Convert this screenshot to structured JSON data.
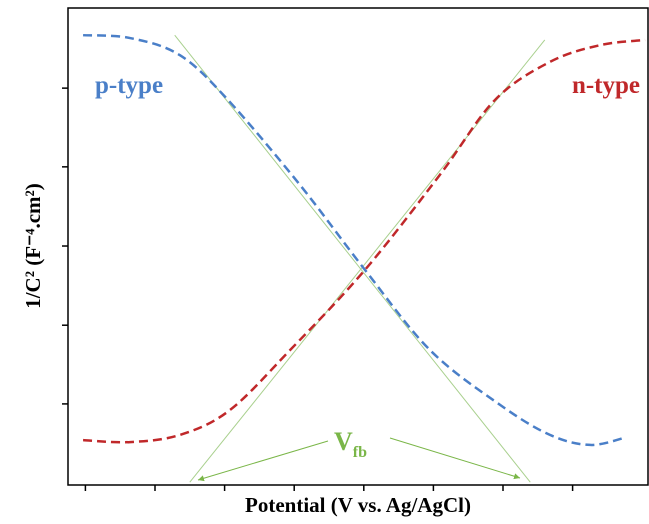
{
  "chart_data": {
    "type": "line",
    "xlabel": "Potential (V vs. Ag/AgCl)",
    "ylabel": "1/C² (F⁻⁴.cm²)",
    "xlim": [
      0,
      10
    ],
    "ylim": [
      0,
      10
    ],
    "xticks": [
      0.3,
      1.5,
      2.7,
      3.9,
      5.1,
      6.3,
      7.5,
      8.7
    ],
    "yticks": [
      1.7,
      3.35,
      5.01,
      6.67,
      8.32
    ],
    "series": [
      {
        "name": "p-type",
        "color": "#4a7fc8",
        "x": [
          0.26,
          1.07,
          1.93,
          2.76,
          4.0,
          5.12,
          6.24,
          7.45,
          8.31,
          9.0,
          9.6
        ],
        "values": [
          9.43,
          9.37,
          9.01,
          8.07,
          6.29,
          4.51,
          2.83,
          1.68,
          1.05,
          0.84,
          0.99
        ]
      },
      {
        "name": "n-type",
        "color": "#c0282a",
        "x": [
          0.26,
          1.07,
          1.93,
          2.79,
          3.83,
          5.12,
          6.41,
          7.36,
          8.31,
          9.17,
          9.95
        ],
        "values": [
          0.94,
          0.9,
          1.05,
          1.57,
          2.83,
          4.51,
          6.5,
          8.07,
          8.87,
          9.22,
          9.33
        ]
      }
    ],
    "tangents": [
      {
        "color": "#a9d08e",
        "x": [
          1.84,
          7.97
        ],
        "values": [
          9.43,
          0.06
        ]
      },
      {
        "color": "#a9d08e",
        "x": [
          2.1,
          8.22
        ],
        "values": [
          0.06,
          9.33
        ]
      }
    ],
    "annotation": {
      "text": "V",
      "subscript": "fb",
      "color": "#7ab648"
    }
  }
}
